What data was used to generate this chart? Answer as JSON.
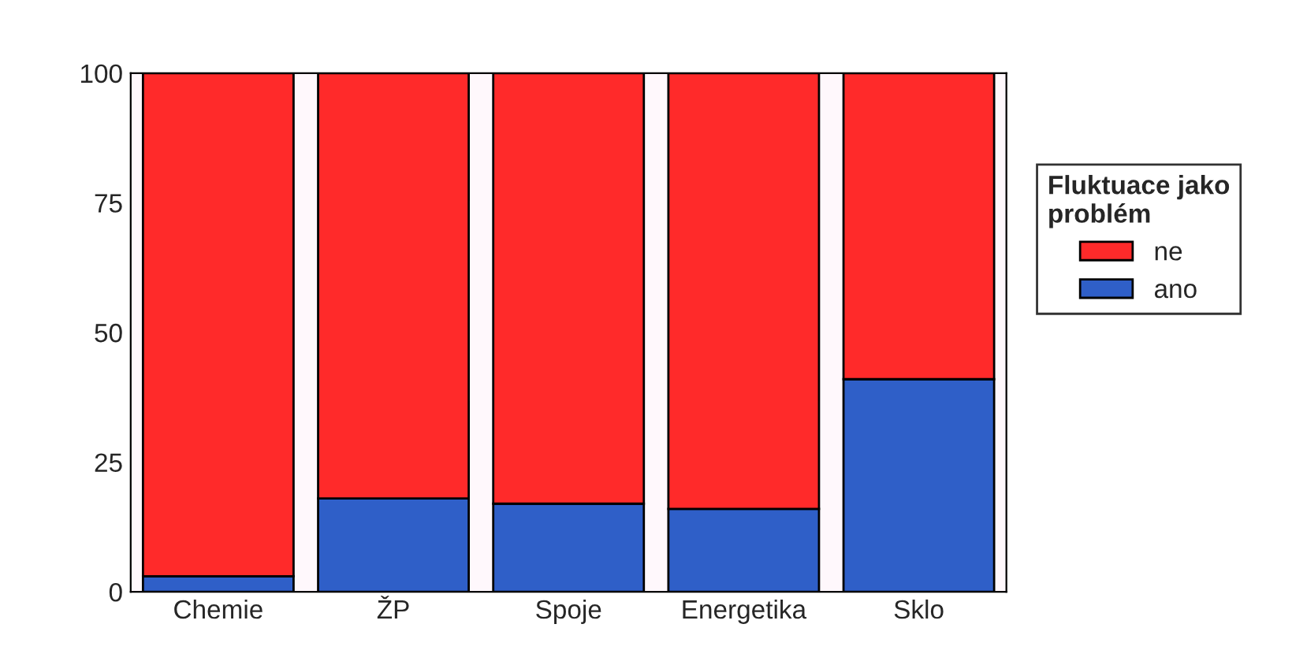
{
  "chart_data": {
    "type": "bar",
    "stacked": true,
    "legend_title": "Fluktuace jako\nproblém",
    "legend": "right",
    "categories": [
      "Chemie",
      "ŽP",
      "Spoje",
      "Energetika",
      "Sklo"
    ],
    "series": [
      {
        "name": "ano",
        "color": "#2f5fc8",
        "values": [
          3,
          18,
          17,
          16,
          41
        ]
      },
      {
        "name": "ne",
        "color": "#ff2a2a",
        "values": [
          97,
          82,
          83,
          84,
          59
        ]
      }
    ],
    "ylim": [
      0,
      100
    ],
    "yticks": [
      0,
      25,
      50,
      75,
      100
    ],
    "grid": false
  }
}
